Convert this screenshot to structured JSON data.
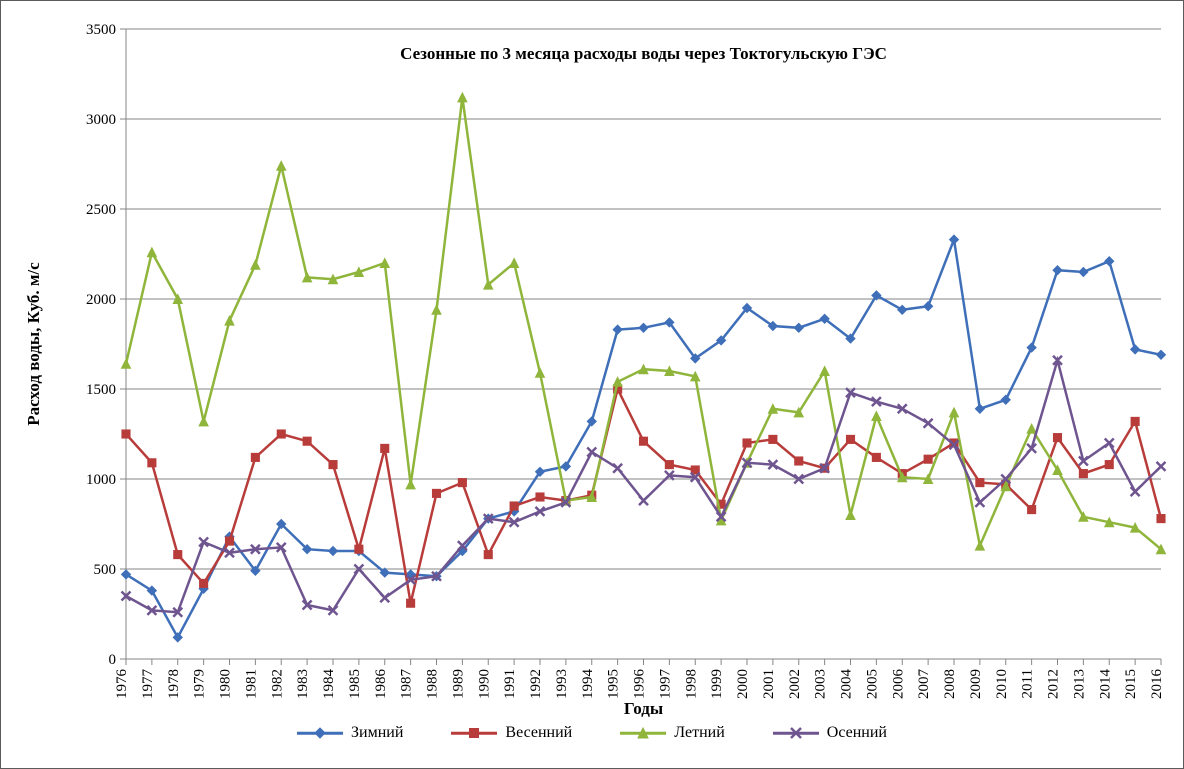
{
  "chart": {
    "type": "line",
    "title": "Сезонные по 3 месяца расходы воды через Токтогульскую ГЭС",
    "title_fontsize": 17,
    "title_fontweight": "bold",
    "x_label": "Годы",
    "y_label": "Расход  воды, Куб. м/с",
    "axis_label_fontsize": 17,
    "tick_fontsize": 15,
    "ylim": [
      0,
      3500
    ],
    "ytick_step": 500,
    "background_color": "#ffffff",
    "grid_color": "#868686",
    "axis_color": "#868686",
    "years": [
      1976,
      1977,
      1978,
      1979,
      1980,
      1981,
      1982,
      1983,
      1984,
      1985,
      1986,
      1987,
      1988,
      1989,
      1990,
      1991,
      1992,
      1993,
      1994,
      1995,
      1996,
      1997,
      1998,
      1999,
      2000,
      2001,
      2002,
      2003,
      2004,
      2005,
      2006,
      2007,
      2008,
      2009,
      2010,
      2011,
      2012,
      2013,
      2014,
      2015,
      2016
    ],
    "line_width": 2.5,
    "marker_size": 9,
    "series": [
      {
        "name": "Зимний",
        "legend_label": "Зимний",
        "color": "#3f6fb8",
        "marker": "diamond",
        "values": [
          470,
          380,
          120,
          390,
          680,
          490,
          750,
          610,
          600,
          600,
          480,
          470,
          460,
          600,
          780,
          820,
          1040,
          1070,
          1320,
          1830,
          1840,
          1870,
          1670,
          1770,
          1950,
          1850,
          1840,
          1890,
          1780,
          2020,
          1940,
          1960,
          2330,
          1390,
          1440,
          1730,
          2160,
          2150,
          2210,
          1720,
          1690
        ]
      },
      {
        "name": "Весенний",
        "legend_label": "Весенний",
        "color": "#b83c3a",
        "marker": "square",
        "values": [
          1250,
          1090,
          580,
          420,
          655,
          1120,
          1250,
          1210,
          1080,
          610,
          1170,
          310,
          920,
          980,
          580,
          850,
          900,
          880,
          910,
          1500,
          1210,
          1080,
          1050,
          860,
          1200,
          1220,
          1100,
          1060,
          1220,
          1120,
          1030,
          1110,
          1200,
          980,
          970,
          830,
          1230,
          1030,
          1080,
          1320,
          780
        ]
      },
      {
        "name": "Летний",
        "legend_label": "Летний",
        "color": "#8fb53b",
        "marker": "triangle",
        "values": [
          1640,
          2260,
          2000,
          1320,
          1880,
          2190,
          2740,
          2120,
          2110,
          2150,
          2200,
          970,
          1940,
          3120,
          2080,
          2200,
          1590,
          880,
          900,
          1540,
          1610,
          1600,
          1570,
          770,
          1090,
          1390,
          1370,
          1600,
          800,
          1350,
          1010,
          1000,
          1370,
          630,
          960,
          1280,
          1050,
          790,
          760,
          730,
          610
        ]
      },
      {
        "name": "Осенний",
        "legend_label": "Осенний",
        "color": "#6f558f",
        "marker": "x",
        "values": [
          350,
          270,
          260,
          650,
          590,
          610,
          620,
          300,
          270,
          500,
          340,
          440,
          460,
          630,
          780,
          760,
          820,
          870,
          1150,
          1060,
          880,
          1020,
          1010,
          790,
          1090,
          1080,
          1000,
          1060,
          1480,
          1430,
          1390,
          1310,
          1190,
          870,
          1000,
          1170,
          1660,
          1100,
          1200,
          930,
          1070
        ]
      }
    ]
  },
  "legend": {
    "fontsize": 16,
    "items": [
      "Зимний",
      "Весенний",
      "Летний",
      "Осенний"
    ]
  }
}
